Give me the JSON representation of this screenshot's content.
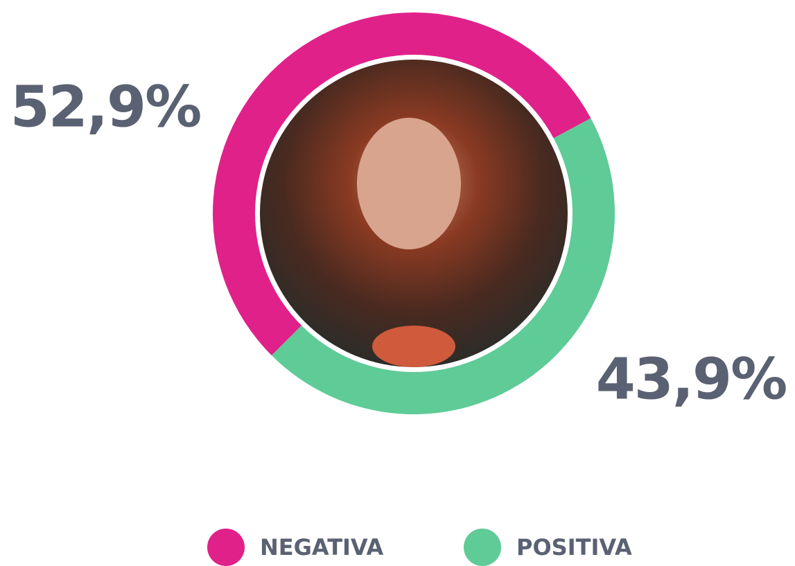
{
  "chart_data": {
    "type": "donut",
    "categories": [
      "NEGATIVA",
      "POSITIVA"
    ],
    "values": [
      52.9,
      43.9
    ],
    "value_labels": [
      "52,9%",
      "43,9%"
    ],
    "colors": [
      "#e0218a",
      "#5fcb97"
    ]
  }
}
